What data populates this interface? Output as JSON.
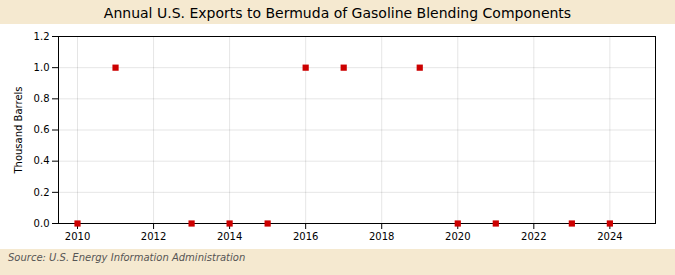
{
  "chart_data": {
    "type": "scatter",
    "title": "Annual U.S. Exports to Bermuda of Gasoline Blending Components",
    "ylabel": "Thousand Barrels",
    "caption": "Source: U.S. Energy Information Administration",
    "x": [
      2010,
      2011,
      2013,
      2014,
      2015,
      2016,
      2017,
      2019,
      2020,
      2021,
      2023,
      2024
    ],
    "values": [
      0.0,
      1.0,
      0.0,
      0.0,
      0.0,
      1.0,
      1.0,
      1.0,
      0.0,
      0.0,
      0.0,
      0.0
    ],
    "color": "#cc0000",
    "marker": "square",
    "xlim": [
      2009.5,
      2025.2
    ],
    "xticks": [
      2010,
      2012,
      2014,
      2016,
      2018,
      2020,
      2022,
      2024
    ],
    "ylim": [
      0.0,
      1.2
    ],
    "yticks": [
      {
        "value": 0.0,
        "label": "0.0"
      },
      0.2,
      0.4,
      0.6,
      0.8,
      {
        "value": 1.0,
        "label": "1.0"
      },
      1.2
    ],
    "grid": true
  }
}
